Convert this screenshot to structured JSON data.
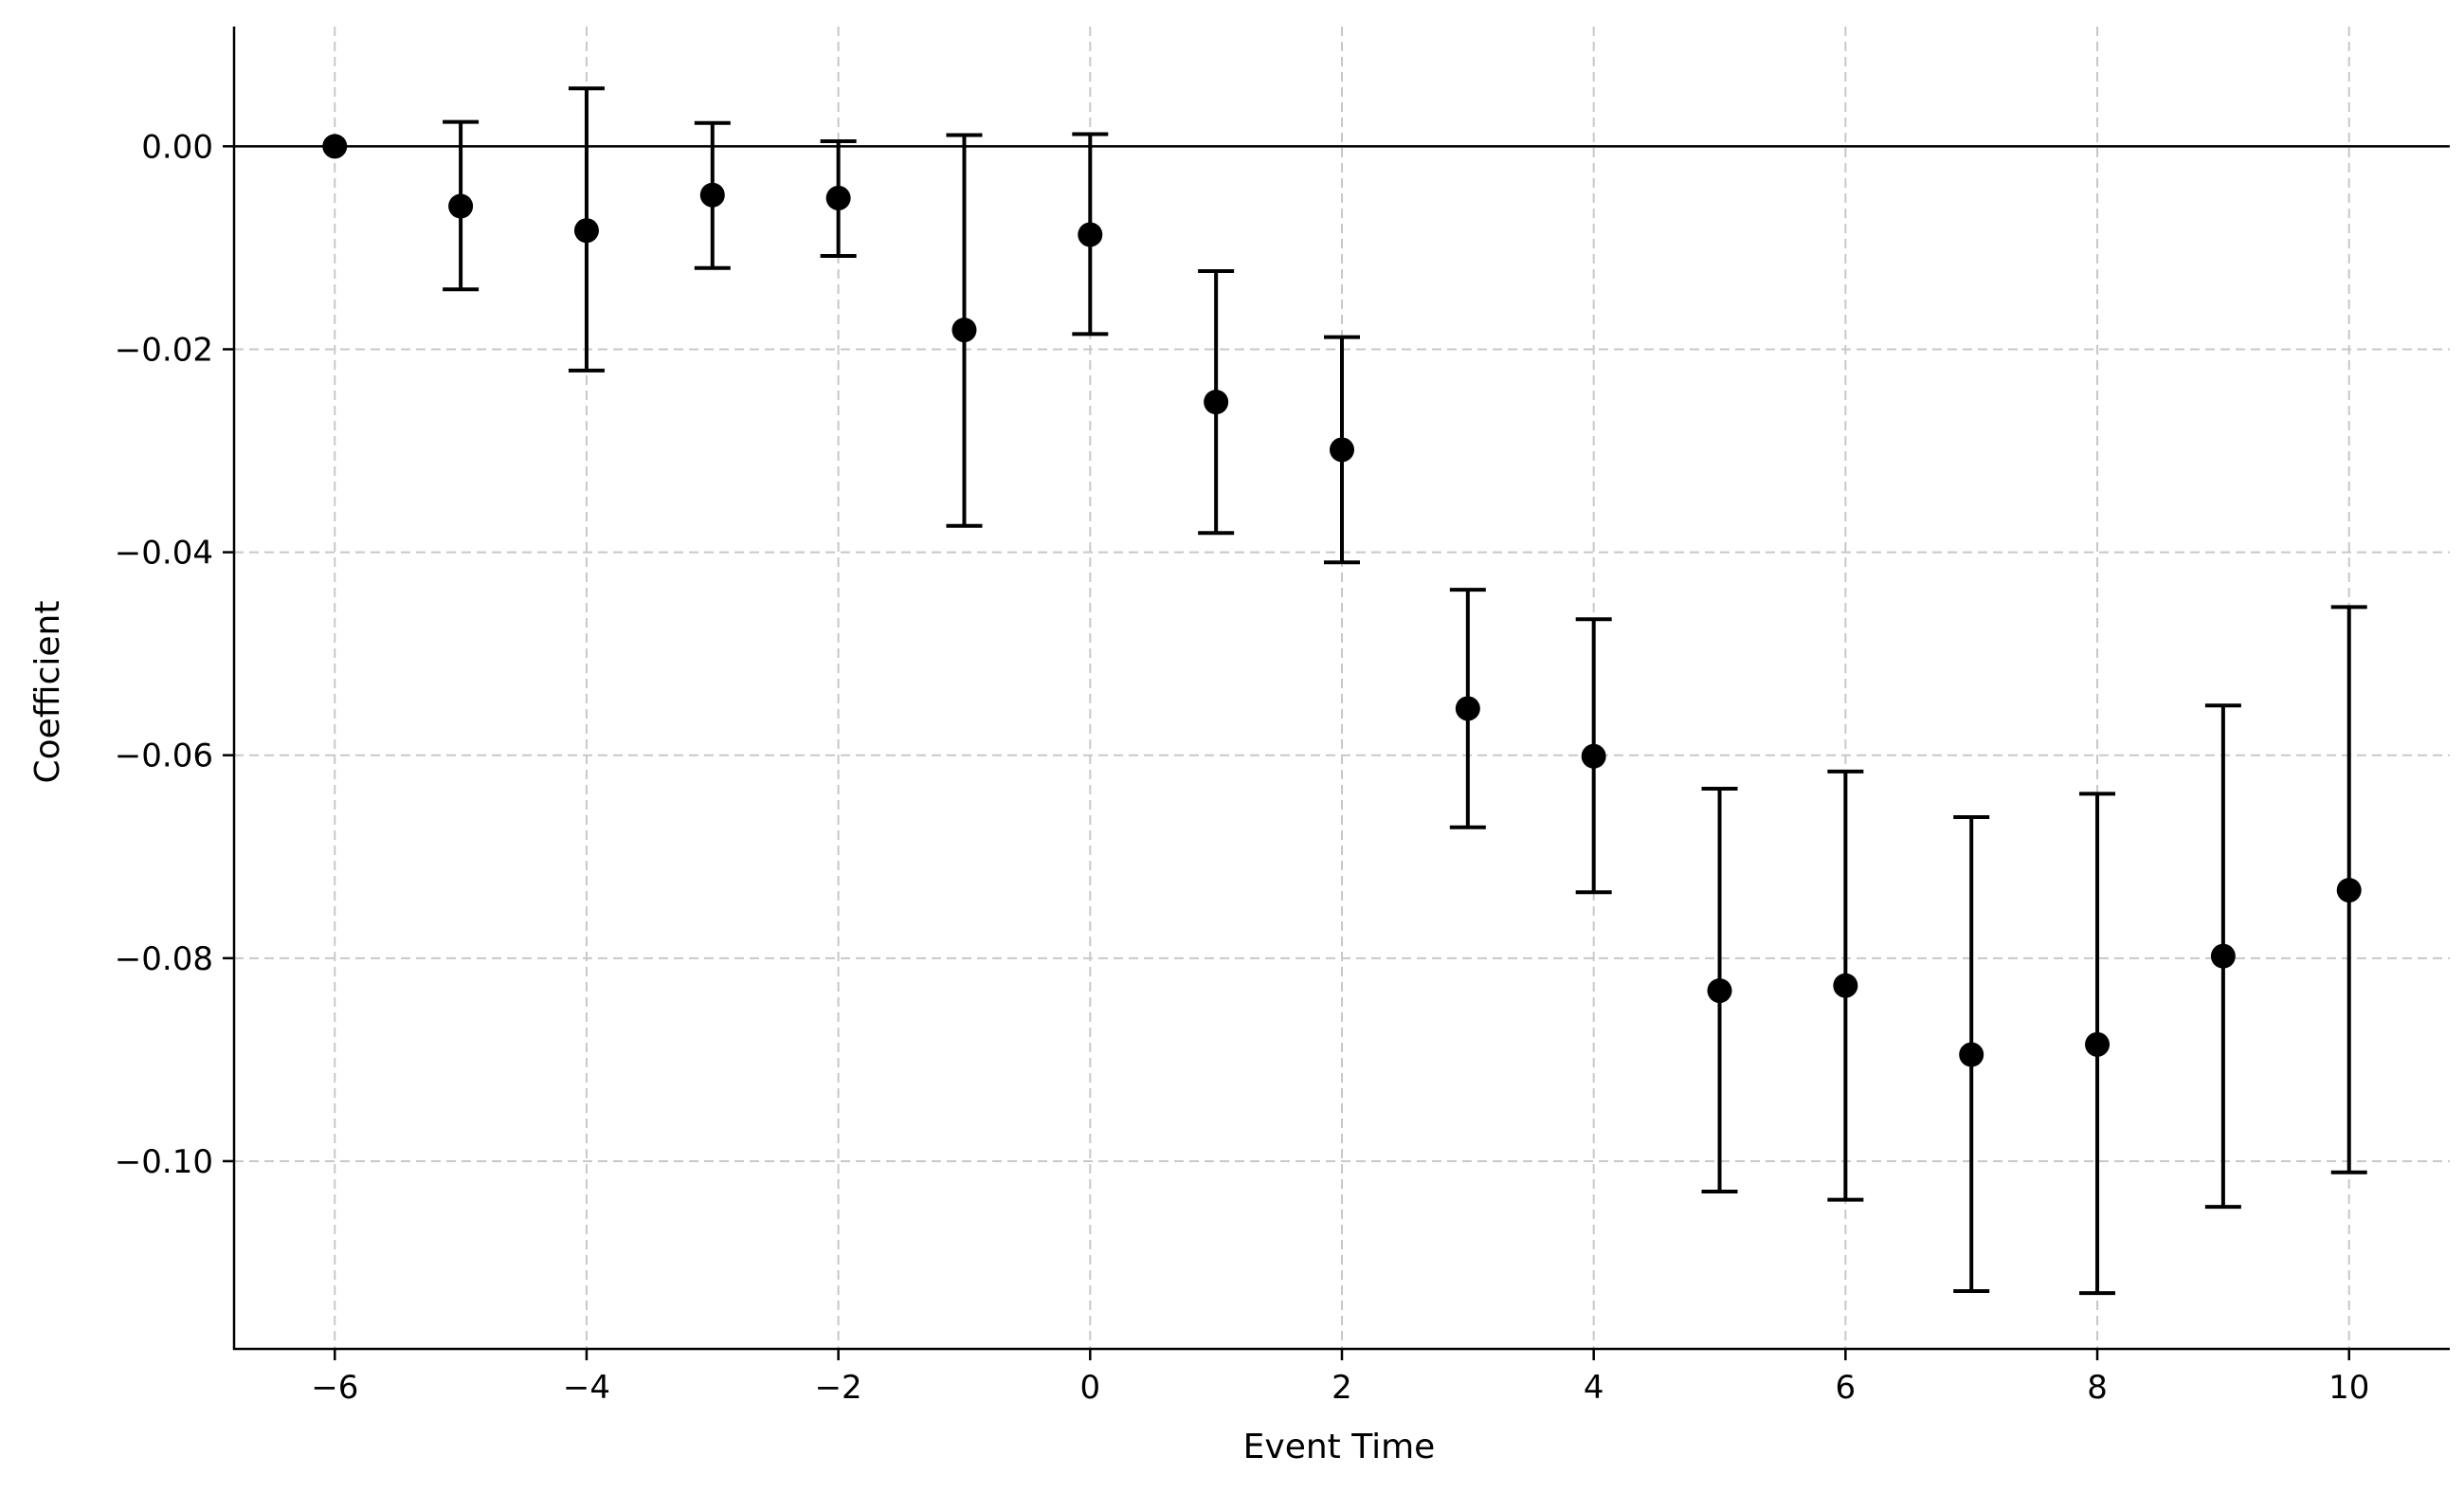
{
  "chart_data": {
    "type": "scatter",
    "subtype": "errorbar",
    "title": "",
    "xlabel": "Event Time",
    "ylabel": "Coefficient",
    "xlim": [
      -6.8,
      10.8
    ],
    "ylim": [
      -0.1185,
      0.0118
    ],
    "xticks": [
      -6,
      -4,
      -2,
      0,
      2,
      4,
      6,
      8,
      10
    ],
    "xtick_labels": [
      "−6",
      "−4",
      "−2",
      "0",
      "2",
      "4",
      "6",
      "8",
      "10"
    ],
    "yticks": [
      0.0,
      -0.02,
      -0.04,
      -0.06,
      -0.08,
      -0.1
    ],
    "ytick_labels": [
      "0.00",
      "−0.02",
      "−0.04",
      "−0.06",
      "−0.08",
      "−0.10"
    ],
    "grid": true,
    "reference_line_y": 0,
    "marker_color": "#000000",
    "grid_color": "#c8c8c8",
    "points": [
      {
        "x": -6,
        "y": 0.0,
        "ci_low": null,
        "ci_high": null
      },
      {
        "x": -5,
        "y": -0.0059,
        "ci_low": -0.0141,
        "ci_high": 0.0024
      },
      {
        "x": -4,
        "y": -0.0083,
        "ci_low": -0.0221,
        "ci_high": 0.0057
      },
      {
        "x": -3,
        "y": -0.0048,
        "ci_low": -0.012,
        "ci_high": 0.0023
      },
      {
        "x": -2,
        "y": -0.0051,
        "ci_low": -0.0108,
        "ci_high": 0.0005
      },
      {
        "x": -1,
        "y": -0.0181,
        "ci_low": -0.0374,
        "ci_high": 0.0011
      },
      {
        "x": 0,
        "y": -0.0087,
        "ci_low": -0.0185,
        "ci_high": 0.0012
      },
      {
        "x": 1,
        "y": -0.0252,
        "ci_low": -0.0381,
        "ci_high": -0.0123
      },
      {
        "x": 2,
        "y": -0.0299,
        "ci_low": -0.041,
        "ci_high": -0.0188
      },
      {
        "x": 3,
        "y": -0.0554,
        "ci_low": -0.0671,
        "ci_high": -0.0437
      },
      {
        "x": 4,
        "y": -0.0601,
        "ci_low": -0.0735,
        "ci_high": -0.0466
      },
      {
        "x": 5,
        "y": -0.0832,
        "ci_low": -0.103,
        "ci_high": -0.0633
      },
      {
        "x": 6,
        "y": -0.0827,
        "ci_low": -0.1038,
        "ci_high": -0.0616
      },
      {
        "x": 7,
        "y": -0.0895,
        "ci_low": -0.1128,
        "ci_high": -0.0661
      },
      {
        "x": 8,
        "y": -0.0885,
        "ci_low": -0.113,
        "ci_high": -0.0638
      },
      {
        "x": 9,
        "y": -0.0798,
        "ci_low": -0.1045,
        "ci_high": -0.0551
      },
      {
        "x": 10,
        "y": -0.0733,
        "ci_low": -0.1011,
        "ci_high": -0.0454
      }
    ]
  }
}
